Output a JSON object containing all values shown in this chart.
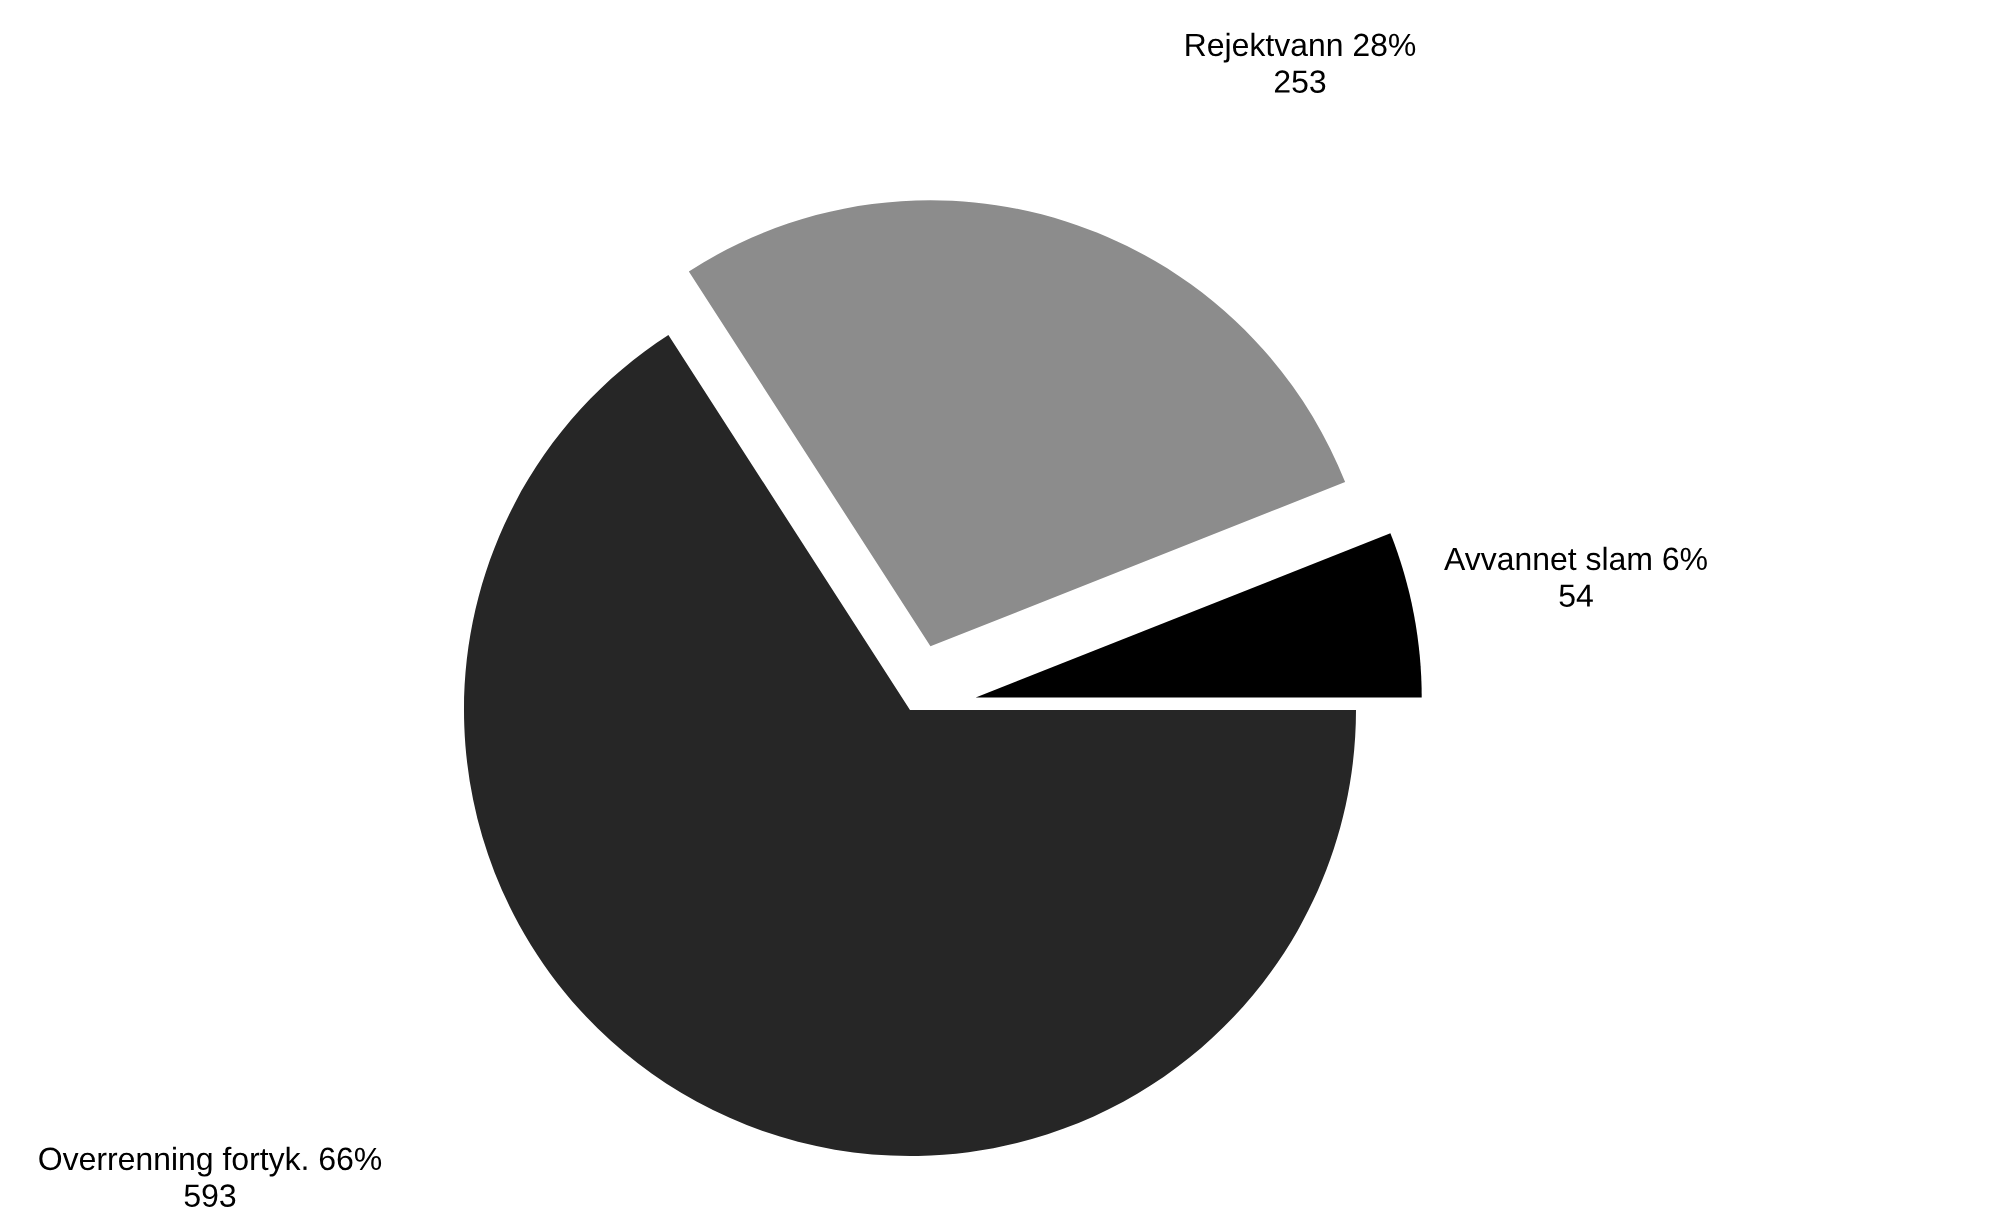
{
  "chart_data": {
    "type": "pie",
    "categories": [
      "Avvannet slam 6%",
      "Rejektvann 28%",
      "Overrenning fortyk. 66%"
    ],
    "values": [
      54,
      253,
      593
    ],
    "data_labels": true,
    "colors": [
      "#000000",
      "#8c8c8c",
      "#262626"
    ],
    "legend": false
  }
}
